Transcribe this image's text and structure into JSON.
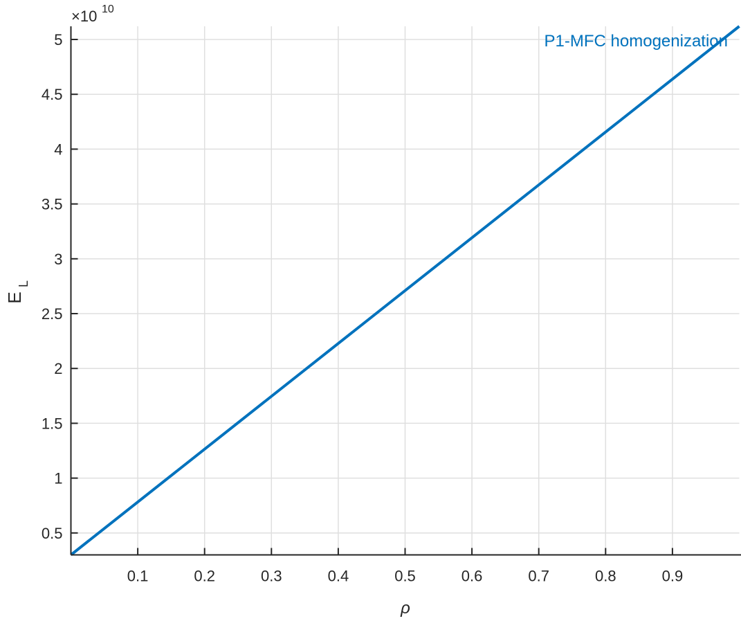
{
  "chart_data": {
    "type": "line",
    "title": "",
    "xlabel": "ρ",
    "ylabel": "E",
    "ylabel_subscript": "L",
    "y_exponent_label": "×10",
    "y_exponent": "10",
    "xlim": [
      0,
      1
    ],
    "ylim": [
      0.3,
      5.12
    ],
    "x_ticks": [
      0.1,
      0.2,
      0.3,
      0.4,
      0.5,
      0.6,
      0.7,
      0.8,
      0.9
    ],
    "x_tick_labels": [
      "0.1",
      "0.2",
      "0.3",
      "0.4",
      "0.5",
      "0.6",
      "0.7",
      "0.8",
      "0.9"
    ],
    "y_ticks": [
      0.5,
      1,
      1.5,
      2,
      2.5,
      3,
      3.5,
      4,
      4.5,
      5
    ],
    "y_tick_labels": [
      "0.5",
      "1",
      "1.5",
      "2",
      "2.5",
      "3",
      "3.5",
      "4",
      "4.5",
      "5"
    ],
    "grid": true,
    "series": [
      {
        "x": [
          0,
          1
        ],
        "y": [
          0.3,
          5.12
        ],
        "color": "#0072BD"
      }
    ],
    "annotations": [
      {
        "text": "P1-MFC homogenization",
        "color": "#0072BD",
        "position": "top-right"
      }
    ]
  }
}
